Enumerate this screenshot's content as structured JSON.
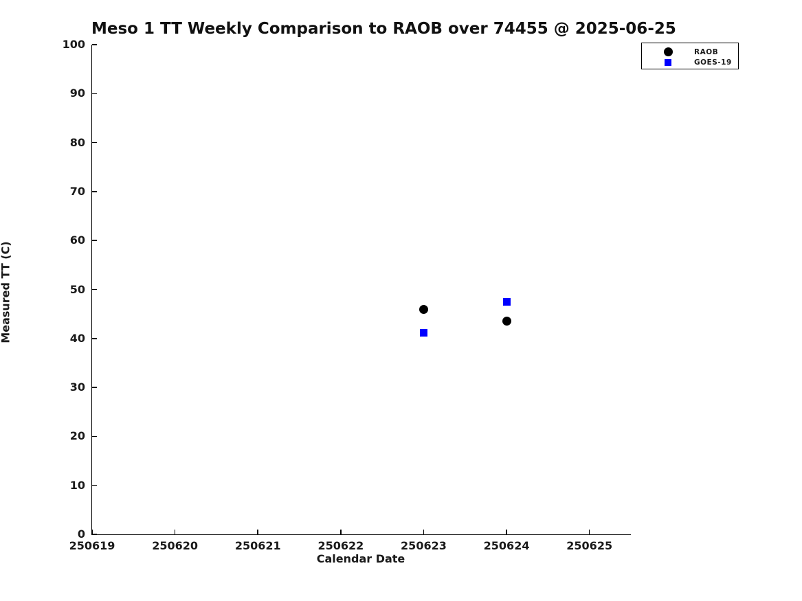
{
  "chart_data": {
    "type": "scatter",
    "title": "Meso 1 TT Weekly Comparison to RAOB over 74455 @ 2025-06-25",
    "xlabel": "Calendar Date",
    "ylabel": "Measured TT (C)",
    "xlim": [
      250619,
      250625.5
    ],
    "ylim": [
      0,
      100
    ],
    "x_ticks": [
      250619,
      250620,
      250621,
      250622,
      250623,
      250624,
      250625
    ],
    "y_ticks": [
      0,
      10,
      20,
      30,
      40,
      50,
      60,
      70,
      80,
      90,
      100
    ],
    "grid": false,
    "legend_position": "top-right-outside",
    "axis_color": "#000000",
    "background_color": "#ffffff",
    "series": [
      {
        "name": "RAOB",
        "marker": "circle",
        "color": "#000000",
        "points": [
          {
            "x": 250623,
            "y": 45.9
          },
          {
            "x": 250624,
            "y": 43.6
          }
        ]
      },
      {
        "name": "GOES-19",
        "marker": "square",
        "color": "#0000ff",
        "points": [
          {
            "x": 250623,
            "y": 41.2
          },
          {
            "x": 250624,
            "y": 47.5
          }
        ]
      }
    ]
  }
}
